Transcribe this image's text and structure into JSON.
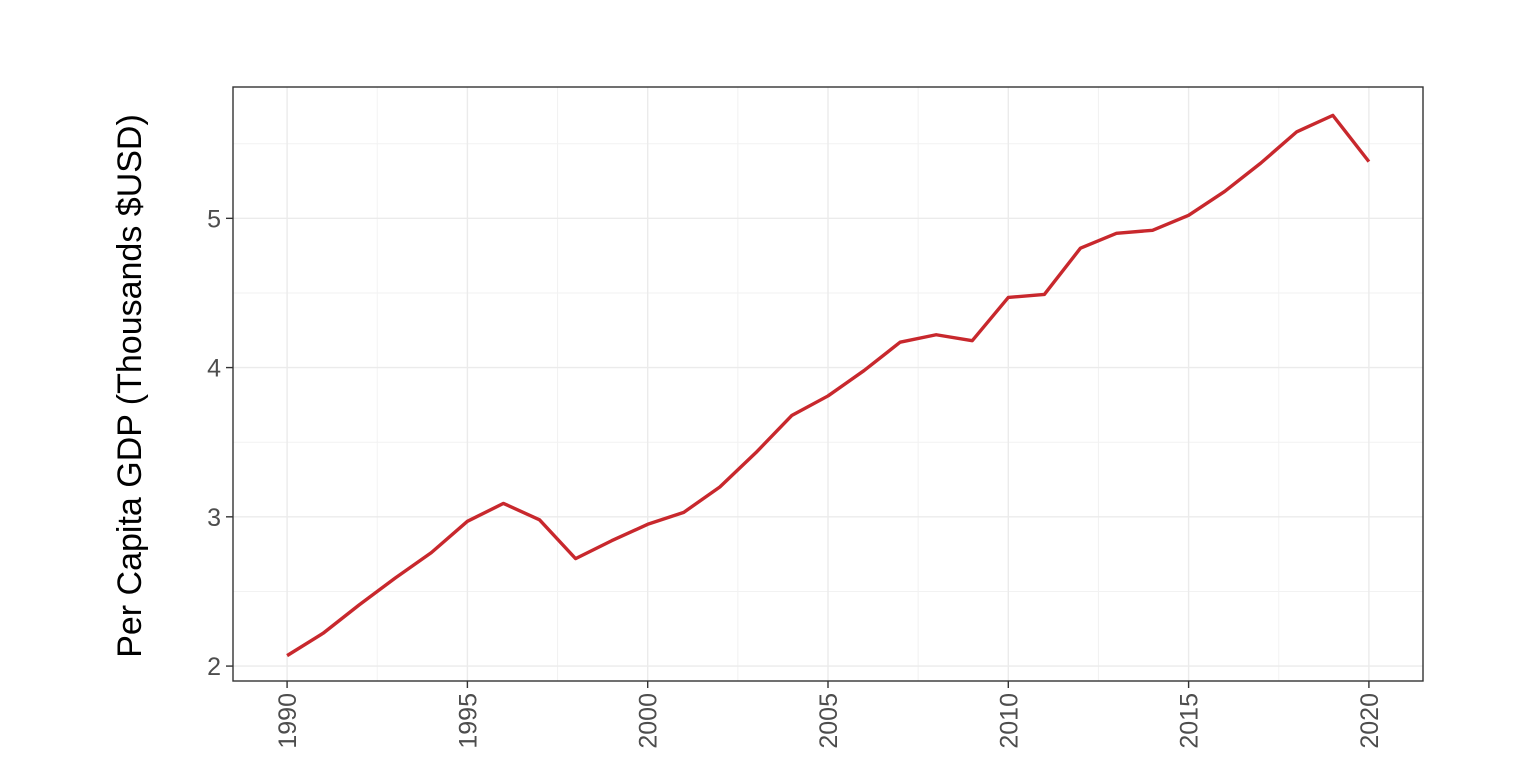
{
  "chart_data": {
    "type": "line",
    "title": "",
    "xlabel": "",
    "ylabel": "Per Capita GDP (Thousands $USD)",
    "xlim": [
      1988.5,
      2021.5
    ],
    "ylim": [
      1.9,
      5.88
    ],
    "x_ticks": [
      1990,
      1995,
      2000,
      2005,
      2010,
      2015,
      2020
    ],
    "x_tick_labels": [
      "1990",
      "1995",
      "2000",
      "2005",
      "2010",
      "2015",
      "2020"
    ],
    "y_ticks": [
      2,
      3,
      4,
      5
    ],
    "y_tick_labels": [
      "2",
      "3",
      "4",
      "5"
    ],
    "grid": true,
    "legend": "none",
    "series": [
      {
        "color": "#c8282d",
        "x": [
          1990,
          1991,
          1992,
          1993,
          1994,
          1995,
          1996,
          1997,
          1998,
          1999,
          2000,
          2001,
          2002,
          2003,
          2004,
          2005,
          2006,
          2007,
          2008,
          2009,
          2010,
          2011,
          2012,
          2013,
          2014,
          2015,
          2016,
          2017,
          2018,
          2019,
          2020
        ],
        "values": [
          2.07,
          2.22,
          2.41,
          2.59,
          2.76,
          2.97,
          3.09,
          2.98,
          2.72,
          2.84,
          2.95,
          3.03,
          3.2,
          3.43,
          3.68,
          3.81,
          3.98,
          4.17,
          4.22,
          4.18,
          4.47,
          4.49,
          4.8,
          4.9,
          4.92,
          5.02,
          5.18,
          5.37,
          5.58,
          5.69,
          5.38
        ]
      }
    ]
  }
}
